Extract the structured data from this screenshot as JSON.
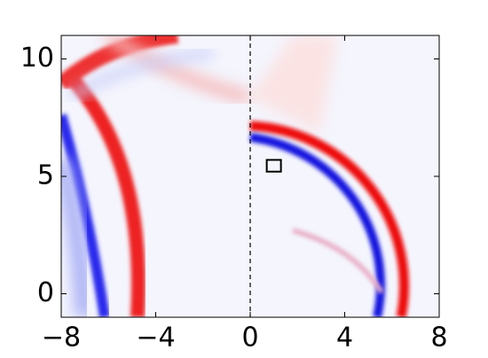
{
  "chart_data": {
    "type": "heatmap-image",
    "xlim": [
      -8,
      8
    ],
    "ylim": [
      -1,
      11
    ],
    "xticks": [
      {
        "value": -8,
        "label": "−8"
      },
      {
        "value": -4,
        "label": "−4"
      },
      0,
      4,
      8
    ],
    "yticks": [
      0,
      5,
      10
    ],
    "vline": 0,
    "box": {
      "x": [
        0.7,
        1.3
      ],
      "y": [
        5.2,
        5.7
      ]
    }
  }
}
